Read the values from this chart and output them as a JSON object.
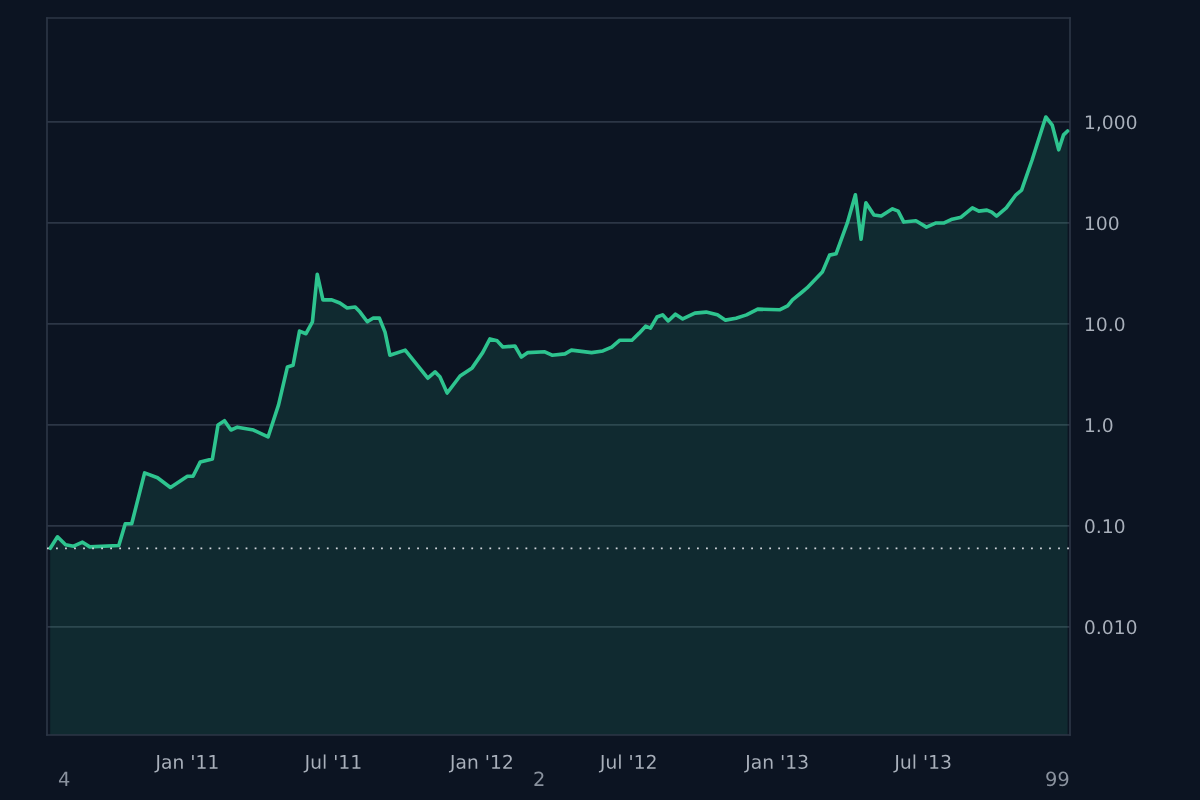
{
  "chart_data": {
    "type": "area",
    "x": [
      "2010-07-15",
      "2010-07-24",
      "2010-08-03",
      "2010-08-13",
      "2010-08-24",
      "2010-09-02",
      "2010-10-08",
      "2010-10-16",
      "2010-10-24",
      "2010-11-09",
      "2010-11-25",
      "2010-12-11",
      "2011-01-01",
      "2011-01-08",
      "2011-01-17",
      "2011-02-01",
      "2011-02-08",
      "2011-02-16",
      "2011-02-24",
      "2011-03-04",
      "2011-03-24",
      "2011-04-11",
      "2011-04-24",
      "2011-05-05",
      "2011-05-12",
      "2011-05-20",
      "2011-05-28",
      "2011-06-05",
      "2011-06-11",
      "2011-06-18",
      "2011-06-29",
      "2011-07-09",
      "2011-07-18",
      "2011-07-28",
      "2011-08-03",
      "2011-08-12",
      "2011-08-19",
      "2011-08-27",
      "2011-09-03",
      "2011-09-09",
      "2011-09-28",
      "2011-10-13",
      "2011-10-26",
      "2011-11-04",
      "2011-11-10",
      "2011-11-19",
      "2011-12-05",
      "2011-12-20",
      "2012-01-02",
      "2012-01-11",
      "2012-01-20",
      "2012-01-27",
      "2012-02-11",
      "2012-02-19",
      "2012-02-27",
      "2012-03-19",
      "2012-03-28",
      "2012-04-13",
      "2012-04-21",
      "2012-05-16",
      "2012-05-30",
      "2012-06-10",
      "2012-06-20",
      "2012-07-05",
      "2012-07-14",
      "2012-07-22",
      "2012-07-28",
      "2012-08-05",
      "2012-08-12",
      "2012-08-19",
      "2012-08-28",
      "2012-09-06",
      "2012-09-21",
      "2012-10-05",
      "2012-10-19",
      "2012-10-29",
      "2012-11-11",
      "2012-11-24",
      "2012-12-08",
      "2013-01-04",
      "2013-01-14",
      "2013-01-20",
      "2013-02-01",
      "2013-02-07",
      "2013-02-26",
      "2013-03-07",
      "2013-03-15",
      "2013-03-29",
      "2013-04-08",
      "2013-04-15",
      "2013-04-21",
      "2013-05-01",
      "2013-05-10",
      "2013-05-24",
      "2013-05-31",
      "2013-06-07",
      "2013-06-22",
      "2013-07-05",
      "2013-07-17",
      "2013-07-27",
      "2013-08-06",
      "2013-08-17",
      "2013-08-31",
      "2013-09-08",
      "2013-09-18",
      "2013-09-24",
      "2013-09-30",
      "2013-10-12",
      "2013-10-24",
      "2013-10-31",
      "2013-11-13",
      "2013-11-30",
      "2013-12-08",
      "2013-12-16",
      "2013-12-22",
      "2013-12-27"
    ],
    "series": [
      {
        "color": "#2ec48f",
        "values": [
          0.06,
          0.078,
          0.065,
          0.063,
          0.069,
          0.062,
          0.064,
          0.105,
          0.105,
          0.335,
          0.3,
          0.24,
          0.31,
          0.31,
          0.43,
          0.46,
          1.0,
          1.1,
          0.89,
          0.95,
          0.89,
          0.76,
          1.58,
          3.75,
          3.9,
          8.5,
          8.0,
          10.5,
          31,
          17.3,
          17.3,
          16.1,
          14.4,
          14.7,
          13.1,
          10.5,
          11.4,
          11.4,
          8.3,
          4.9,
          5.5,
          3.9,
          2.9,
          3.35,
          3.0,
          2.07,
          3.05,
          3.67,
          5.2,
          7.1,
          6.8,
          5.9,
          6.05,
          4.7,
          5.2,
          5.3,
          4.9,
          5.05,
          5.5,
          5.2,
          5.4,
          5.9,
          6.9,
          6.9,
          8.1,
          9.5,
          9.1,
          11.7,
          12.3,
          10.7,
          12.5,
          11.2,
          12.8,
          13.1,
          12.3,
          10.9,
          11.4,
          12.3,
          14.0,
          13.8,
          15.1,
          17.3,
          20.7,
          22.7,
          32.6,
          48,
          49.5,
          100,
          190,
          69,
          158,
          120,
          117,
          138,
          131,
          102,
          105,
          91,
          100,
          100,
          109,
          114,
          141,
          131,
          134,
          128,
          117,
          141,
          190,
          211,
          420,
          1120,
          930,
          530,
          745,
          815
        ]
      }
    ],
    "log": "y",
    "xlim": [
      "2010-07-11",
      "2013-12-30"
    ],
    "xticks": [
      {
        "value": "2011-01-01",
        "label": "Jan '11"
      },
      {
        "value": "2011-07-01",
        "label": "Jul '11"
      },
      {
        "value": "2012-01-01",
        "label": "Jan '12"
      },
      {
        "value": "2012-07-01",
        "label": "Jul '12"
      },
      {
        "value": "2013-01-01",
        "label": "Jan '13"
      },
      {
        "value": "2013-07-01",
        "label": "Jul '13"
      }
    ],
    "ylim": [
      0.00085,
      10700
    ],
    "yticks": [
      {
        "value": 0.01,
        "label": "0.010"
      },
      {
        "value": 0.1,
        "label": "0.10"
      },
      {
        "value": 1,
        "label": "1.0"
      },
      {
        "value": 10,
        "label": "10.0"
      },
      {
        "value": 100,
        "label": "100"
      },
      {
        "value": 1000,
        "label": "1,000"
      }
    ],
    "grid": "y",
    "ref_lines": [
      {
        "axis": "y",
        "value": 0.06,
        "color": "#d0d4da",
        "line_style": "dotted"
      }
    ],
    "annotations": [
      "4",
      "2",
      "99"
    ]
  }
}
